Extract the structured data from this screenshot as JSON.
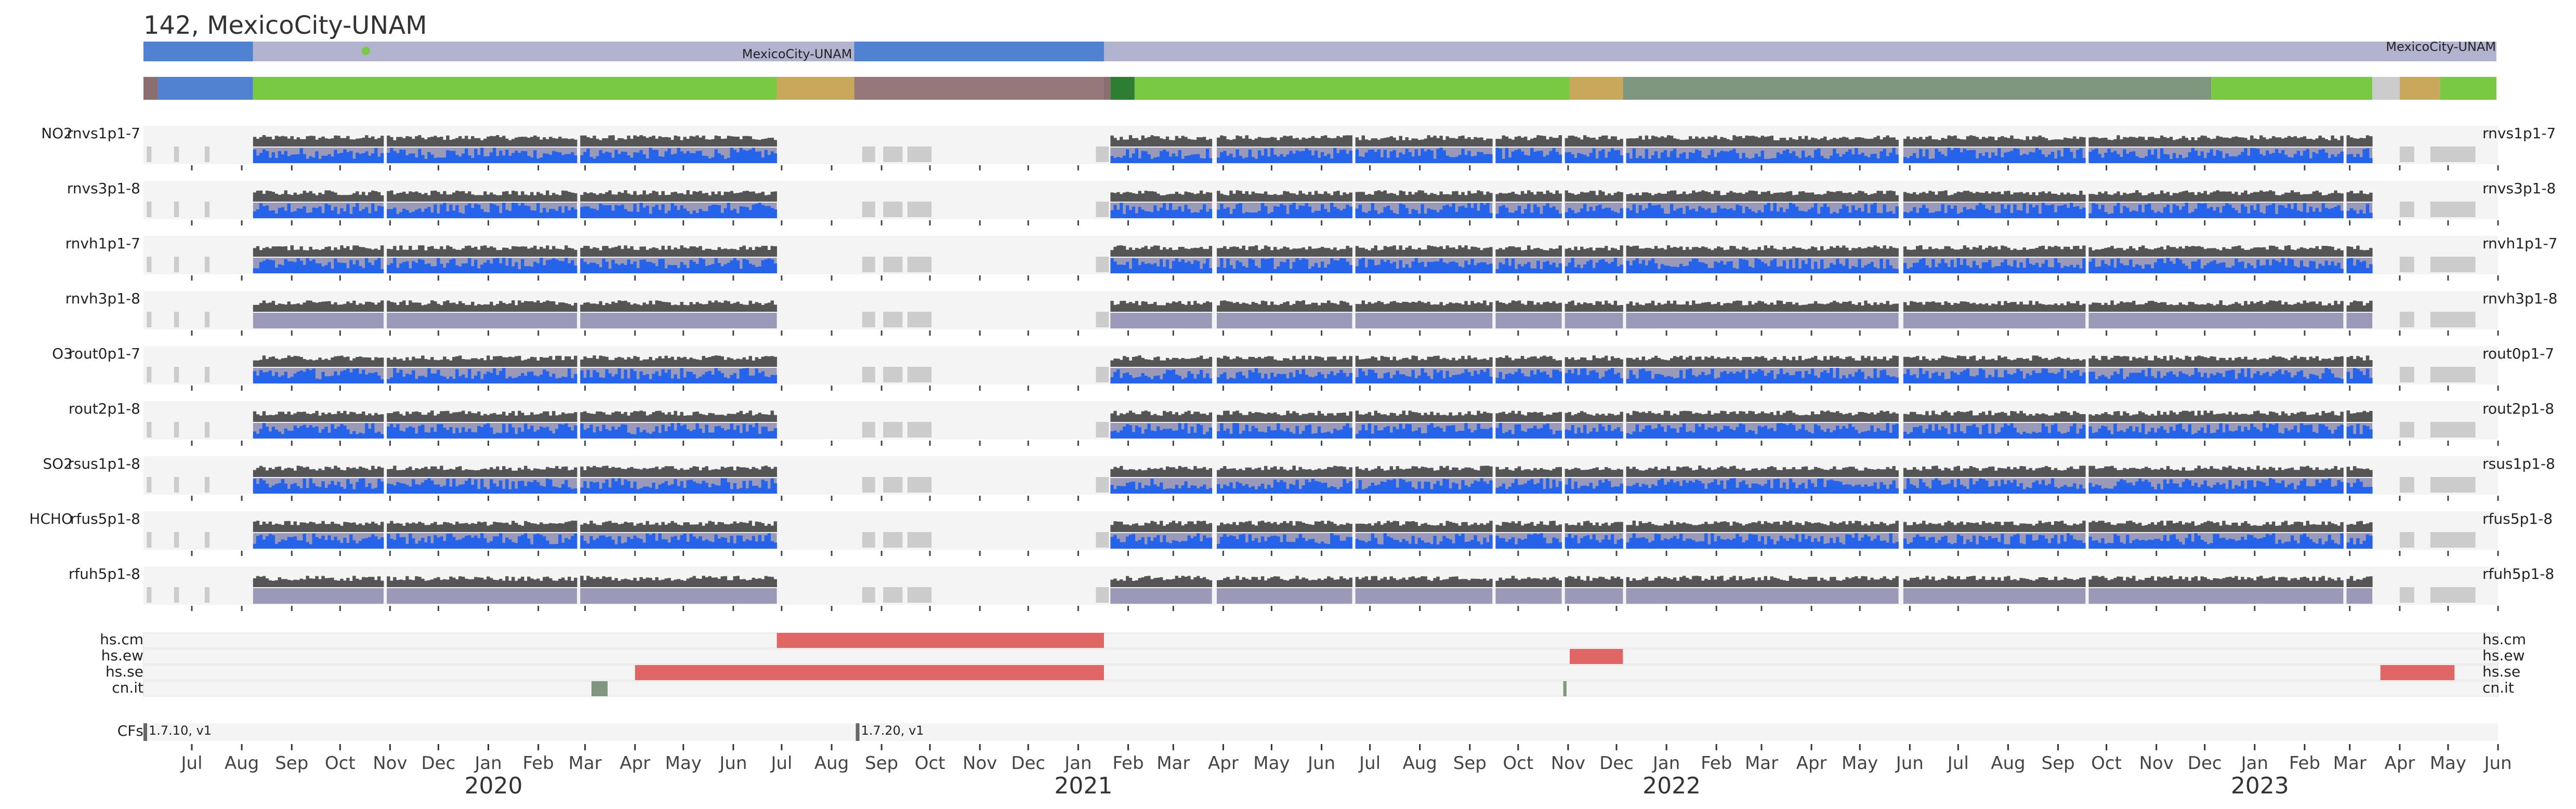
{
  "title": "142, MexicoCity-UNAM",
  "location_bar": {
    "labels": [
      "MexicoCity-UNAM",
      "MexicoCity-UNAM"
    ],
    "segments": [
      {
        "start": "2019-06-01",
        "end": "2019-08-08",
        "color": "#4f83d1"
      },
      {
        "start": "2019-08-08",
        "end": "2020-08-15",
        "color": "#b1b3cf"
      },
      {
        "start": "2020-08-15",
        "end": "2021-01-17",
        "color": "#4f83d1"
      },
      {
        "start": "2021-01-17",
        "end": "2023-05-31",
        "color": "#b1b3cf"
      }
    ],
    "marker": {
      "date": "2019-10-17",
      "color": "#7ac943"
    }
  },
  "status_bar": {
    "segments": [
      {
        "start": "2019-06-01",
        "end": "2019-06-10",
        "color": "#8b6e6e"
      },
      {
        "start": "2019-06-10",
        "end": "2019-08-08",
        "color": "#4f83d1"
      },
      {
        "start": "2019-08-08",
        "end": "2020-06-28",
        "color": "#7ac943"
      },
      {
        "start": "2020-06-28",
        "end": "2020-08-15",
        "color": "#c8a85a"
      },
      {
        "start": "2020-08-15",
        "end": "2021-01-17",
        "color": "#977878"
      },
      {
        "start": "2021-01-17",
        "end": "2021-01-21",
        "color": "#8b6e6e"
      },
      {
        "start": "2021-01-21",
        "end": "2021-02-05",
        "color": "#2e7d32"
      },
      {
        "start": "2021-02-05",
        "end": "2021-11-02",
        "color": "#7ac943"
      },
      {
        "start": "2021-11-02",
        "end": "2021-12-05",
        "color": "#c8a85a"
      },
      {
        "start": "2021-12-05",
        "end": "2022-12-05",
        "color": "#7f967f"
      },
      {
        "start": "2022-12-05",
        "end": "2023-03-15",
        "color": "#7ac943"
      },
      {
        "start": "2023-03-15",
        "end": "2023-04-01",
        "color": "#cccccc"
      },
      {
        "start": "2023-04-01",
        "end": "2023-04-26",
        "color": "#c8a85a"
      },
      {
        "start": "2023-04-26",
        "end": "2023-05-31",
        "color": "#7ac943"
      }
    ]
  },
  "chart_data": {
    "type": "timeline",
    "x_range": [
      "2019-06-01",
      "2023-06-01"
    ],
    "month_ticks": [
      {
        "date": "2019-07-01",
        "label": "Jul"
      },
      {
        "date": "2019-08-01",
        "label": "Aug"
      },
      {
        "date": "2019-09-01",
        "label": "Sep"
      },
      {
        "date": "2019-10-01",
        "label": "Oct"
      },
      {
        "date": "2019-11-01",
        "label": "Nov"
      },
      {
        "date": "2019-12-01",
        "label": "Dec"
      },
      {
        "date": "2020-01-01",
        "label": "Jan"
      },
      {
        "date": "2020-02-01",
        "label": "Feb"
      },
      {
        "date": "2020-03-01",
        "label": "Mar"
      },
      {
        "date": "2020-04-01",
        "label": "Apr"
      },
      {
        "date": "2020-05-01",
        "label": "May"
      },
      {
        "date": "2020-06-01",
        "label": "Jun"
      },
      {
        "date": "2020-07-01",
        "label": "Jul"
      },
      {
        "date": "2020-08-01",
        "label": "Aug"
      },
      {
        "date": "2020-09-01",
        "label": "Sep"
      },
      {
        "date": "2020-10-01",
        "label": "Oct"
      },
      {
        "date": "2020-11-01",
        "label": "Nov"
      },
      {
        "date": "2020-12-01",
        "label": "Dec"
      },
      {
        "date": "2021-01-01",
        "label": "Jan"
      },
      {
        "date": "2021-02-01",
        "label": "Feb"
      },
      {
        "date": "2021-03-01",
        "label": "Mar"
      },
      {
        "date": "2021-04-01",
        "label": "Apr"
      },
      {
        "date": "2021-05-01",
        "label": "May"
      },
      {
        "date": "2021-06-01",
        "label": "Jun"
      },
      {
        "date": "2021-07-01",
        "label": "Jul"
      },
      {
        "date": "2021-08-01",
        "label": "Aug"
      },
      {
        "date": "2021-09-01",
        "label": "Sep"
      },
      {
        "date": "2021-10-01",
        "label": "Oct"
      },
      {
        "date": "2021-11-01",
        "label": "Nov"
      },
      {
        "date": "2021-12-01",
        "label": "Dec"
      },
      {
        "date": "2022-01-01",
        "label": "Jan"
      },
      {
        "date": "2022-02-01",
        "label": "Feb"
      },
      {
        "date": "2022-03-01",
        "label": "Mar"
      },
      {
        "date": "2022-04-01",
        "label": "Apr"
      },
      {
        "date": "2022-05-01",
        "label": "May"
      },
      {
        "date": "2022-06-01",
        "label": "Jun"
      },
      {
        "date": "2022-07-01",
        "label": "Jul"
      },
      {
        "date": "2022-08-01",
        "label": "Aug"
      },
      {
        "date": "2022-09-01",
        "label": "Sep"
      },
      {
        "date": "2022-10-01",
        "label": "Oct"
      },
      {
        "date": "2022-11-01",
        "label": "Nov"
      },
      {
        "date": "2022-12-01",
        "label": "Dec"
      },
      {
        "date": "2023-01-01",
        "label": "Jan"
      },
      {
        "date": "2023-02-01",
        "label": "Feb"
      },
      {
        "date": "2023-03-01",
        "label": "Mar"
      },
      {
        "date": "2023-04-01",
        "label": "Apr"
      },
      {
        "date": "2023-05-01",
        "label": "May"
      },
      {
        "date": "2023-06-01",
        "label": "Jun"
      }
    ],
    "year_labels": [
      {
        "date": "2020-01-01",
        "label": "2020"
      },
      {
        "date": "2021-01-01",
        "label": "2021"
      },
      {
        "date": "2022-01-01",
        "label": "2022"
      },
      {
        "date": "2023-01-01",
        "label": "2023"
      }
    ],
    "rows": [
      {
        "prefix": "NO2",
        "name": "rnvs1p1-7",
        "blue": true
      },
      {
        "prefix": "",
        "name": "rnvs3p1-8",
        "blue": true
      },
      {
        "prefix": "",
        "name": "rnvh1p1-7",
        "blue": true
      },
      {
        "prefix": "",
        "name": "rnvh3p1-8",
        "blue": false
      },
      {
        "prefix": "O3",
        "name": "rout0p1-7",
        "blue": true
      },
      {
        "prefix": "",
        "name": "rout2p1-8",
        "blue": true
      },
      {
        "prefix": "SO2",
        "name": "rsus1p1-8",
        "blue": true
      },
      {
        "prefix": "HCHO",
        "name": "rfus5p1-8",
        "blue": true
      },
      {
        "prefix": "",
        "name": "rfuh5p1-8",
        "blue": false
      }
    ],
    "data_periods": [
      [
        "2019-08-08",
        "2019-10-28"
      ],
      [
        "2019-10-30",
        "2020-02-25"
      ],
      [
        "2020-02-27",
        "2020-06-28"
      ],
      [
        "2021-01-21",
        "2021-03-25"
      ],
      [
        "2021-03-28",
        "2021-06-20"
      ],
      [
        "2021-06-22",
        "2021-09-15"
      ],
      [
        "2021-09-17",
        "2021-10-28"
      ],
      [
        "2021-10-30",
        "2021-12-05"
      ],
      [
        "2021-12-07",
        "2022-05-25"
      ],
      [
        "2022-05-28",
        "2022-09-18"
      ],
      [
        "2022-09-20",
        "2023-02-25"
      ],
      [
        "2023-02-27",
        "2023-03-15"
      ]
    ],
    "gray_periods": [
      [
        "2019-06-03",
        "2019-06-06"
      ],
      [
        "2019-06-20",
        "2019-06-23"
      ],
      [
        "2019-07-09",
        "2019-07-12"
      ],
      [
        "2020-08-20",
        "2020-08-28"
      ],
      [
        "2020-09-02",
        "2020-09-14"
      ],
      [
        "2020-09-17",
        "2020-10-02"
      ],
      [
        "2021-01-12",
        "2021-01-20"
      ],
      [
        "2023-04-01",
        "2023-04-10"
      ],
      [
        "2023-04-20",
        "2023-05-18"
      ]
    ],
    "flags": [
      {
        "label": "hs.cm",
        "color": "#e06666",
        "periods": [
          [
            "2020-06-28",
            "2021-01-17"
          ]
        ]
      },
      {
        "label": "hs.ew",
        "color": "#e06666",
        "periods": [
          [
            "2021-11-02",
            "2021-12-05"
          ]
        ]
      },
      {
        "label": "hs.se",
        "color": "#e06666",
        "periods": [
          [
            "2020-04-01",
            "2021-01-17"
          ],
          [
            "2023-03-20",
            "2023-05-05"
          ]
        ]
      },
      {
        "label": "cn.it",
        "color": "#7f967f",
        "periods": [
          [
            "2020-03-05",
            "2020-03-15"
          ],
          [
            "2021-10-29",
            "2021-10-31"
          ]
        ]
      }
    ],
    "cfs": {
      "label": "CFs",
      "markers": [
        {
          "date": "2019-06-01",
          "label": "1.7.10, v1"
        },
        {
          "date": "2020-08-16",
          "label": "1.7.20, v1"
        }
      ]
    }
  }
}
